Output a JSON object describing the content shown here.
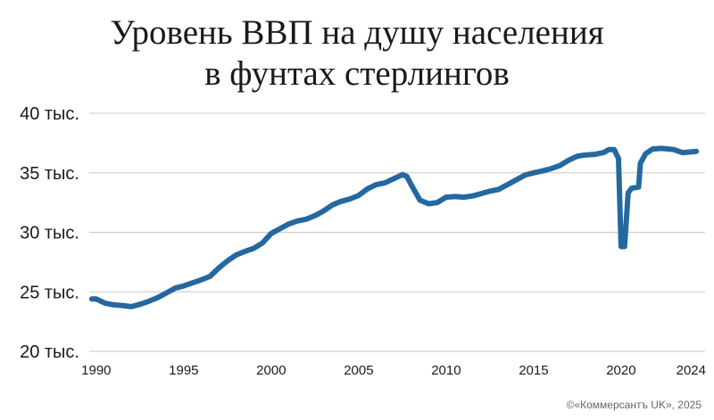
{
  "title_lines": [
    "Уровень ВВП на душу населения",
    "в фунтах стерлингов"
  ],
  "credit": "©«Коммерсантъ UK», 2025",
  "colors": {
    "line": "#2568a0",
    "grid": "#c8c8c8",
    "text": "#1a1a1a"
  },
  "chart_data": {
    "type": "line",
    "title": "Уровень ВВП на душу населения в фунтах стерлингов",
    "xlabel": "",
    "ylabel": "",
    "xlim": [
      1989.6,
      2024.8
    ],
    "ylim": [
      20000,
      40000
    ],
    "grid": "horizontal",
    "y_ticks": [
      {
        "value": 40000,
        "label": "40 тыс."
      },
      {
        "value": 35000,
        "label": "35 тыс."
      },
      {
        "value": 30000,
        "label": "30 тыс."
      },
      {
        "value": 25000,
        "label": "25 тыс."
      },
      {
        "value": 20000,
        "label": "20 тыс."
      }
    ],
    "x_ticks": [
      {
        "value": 1990,
        "label": "1990"
      },
      {
        "value": 1995,
        "label": "1995"
      },
      {
        "value": 2000,
        "label": "2000"
      },
      {
        "value": 2005,
        "label": "2005"
      },
      {
        "value": 2010,
        "label": "2010"
      },
      {
        "value": 2015,
        "label": "2015"
      },
      {
        "value": 2020,
        "label": "2020"
      },
      {
        "value": 2024,
        "label": "2024"
      }
    ],
    "series": [
      {
        "points": [
          [
            1989.75,
            24400
          ],
          [
            1990.0,
            24400
          ],
          [
            1990.5,
            24050
          ],
          [
            1991.0,
            23900
          ],
          [
            1991.5,
            23850
          ],
          [
            1992.0,
            23750
          ],
          [
            1992.5,
            23950
          ],
          [
            1993.0,
            24200
          ],
          [
            1993.5,
            24500
          ],
          [
            1994.0,
            24900
          ],
          [
            1994.5,
            25300
          ],
          [
            1995.0,
            25500
          ],
          [
            1995.5,
            25750
          ],
          [
            1996.0,
            26000
          ],
          [
            1996.5,
            26300
          ],
          [
            1997.0,
            27000
          ],
          [
            1997.5,
            27600
          ],
          [
            1998.0,
            28100
          ],
          [
            1998.5,
            28400
          ],
          [
            1999.0,
            28650
          ],
          [
            1999.5,
            29100
          ],
          [
            2000.0,
            29900
          ],
          [
            2000.5,
            30300
          ],
          [
            2001.0,
            30700
          ],
          [
            2001.5,
            30950
          ],
          [
            2002.0,
            31100
          ],
          [
            2002.5,
            31400
          ],
          [
            2003.0,
            31800
          ],
          [
            2003.5,
            32300
          ],
          [
            2004.0,
            32600
          ],
          [
            2004.5,
            32800
          ],
          [
            2005.0,
            33100
          ],
          [
            2005.5,
            33650
          ],
          [
            2006.0,
            34000
          ],
          [
            2006.5,
            34150
          ],
          [
            2007.0,
            34500
          ],
          [
            2007.5,
            34850
          ],
          [
            2007.75,
            34700
          ],
          [
            2008.0,
            34000
          ],
          [
            2008.5,
            32700
          ],
          [
            2009.0,
            32400
          ],
          [
            2009.5,
            32500
          ],
          [
            2010.0,
            32950
          ],
          [
            2010.5,
            33000
          ],
          [
            2011.0,
            32950
          ],
          [
            2011.5,
            33050
          ],
          [
            2012.0,
            33250
          ],
          [
            2012.5,
            33450
          ],
          [
            2013.0,
            33600
          ],
          [
            2013.5,
            34000
          ],
          [
            2014.0,
            34400
          ],
          [
            2014.5,
            34800
          ],
          [
            2015.0,
            35000
          ],
          [
            2015.5,
            35150
          ],
          [
            2016.0,
            35350
          ],
          [
            2016.5,
            35600
          ],
          [
            2017.0,
            36050
          ],
          [
            2017.5,
            36400
          ],
          [
            2018.0,
            36500
          ],
          [
            2018.5,
            36550
          ],
          [
            2019.0,
            36700
          ],
          [
            2019.3,
            36950
          ],
          [
            2019.6,
            36950
          ],
          [
            2019.85,
            36200
          ],
          [
            2020.0,
            28800
          ],
          [
            2020.2,
            28800
          ],
          [
            2020.4,
            33300
          ],
          [
            2020.6,
            33700
          ],
          [
            2021.0,
            33800
          ],
          [
            2021.1,
            35800
          ],
          [
            2021.4,
            36600
          ],
          [
            2021.8,
            37000
          ],
          [
            2022.3,
            37050
          ],
          [
            2023.0,
            36950
          ],
          [
            2023.5,
            36700
          ],
          [
            2024.0,
            36750
          ],
          [
            2024.3,
            36800
          ]
        ]
      }
    ]
  }
}
